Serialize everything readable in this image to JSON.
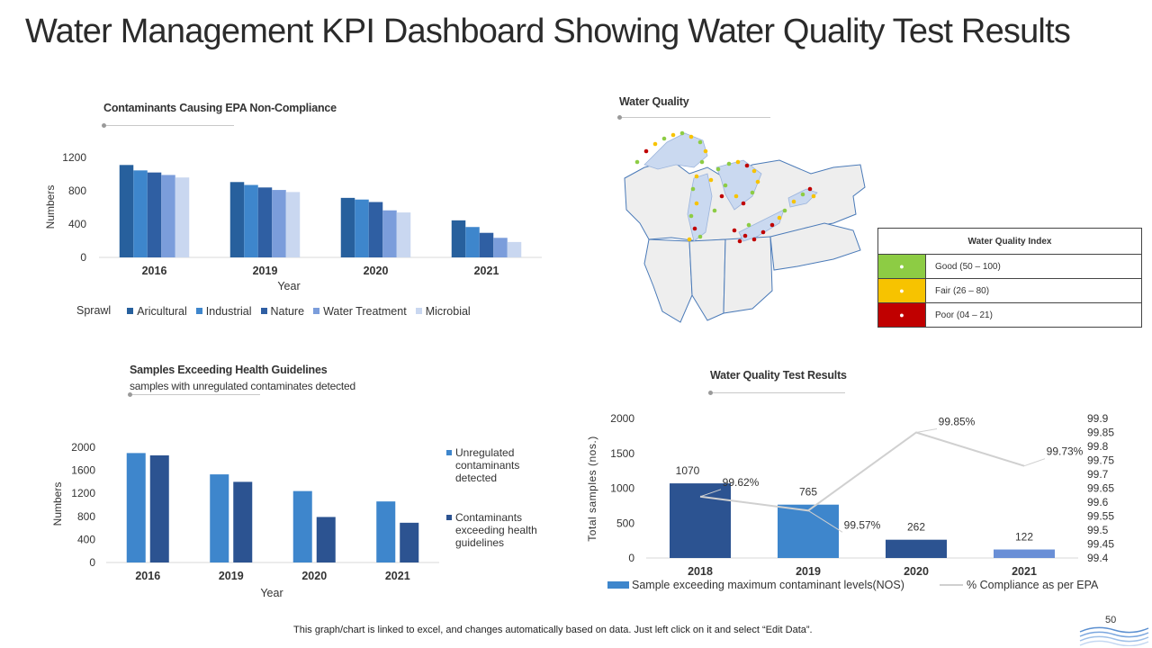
{
  "page": {
    "title": "Water Management KPI Dashboard Showing Water Quality Test Results",
    "footer_note": "This graph/chart is linked to excel,  and changes automatically based on data. Just left click on it and select “Edit Data”.",
    "page_number": "50"
  },
  "sections": {
    "contaminants": "Contaminants Causing EPA Non-Compliance",
    "water_quality": "Water Quality",
    "samples_title": "Samples Exceeding Health Guidelines",
    "samples_subtitle": "samples with unregulated contaminates detected",
    "test_results": "Water Quality Test Results"
  },
  "colors": {
    "navy": "#2c5391",
    "darkblue": "#27609d",
    "blue": "#3e86cc",
    "midblue": "#2f5fa3",
    "lightblue": "#7b9ddb",
    "paleblue": "#c9d7f0",
    "good": "#8dcc44",
    "fair": "#f7c300",
    "poor": "#c00000"
  },
  "legend_index": {
    "header": "Water Quality Index",
    "rows": [
      {
        "dot": "●",
        "label": "Good (50 – 100)",
        "color": "#8dcc44"
      },
      {
        "dot": "●",
        "label": "Fair (26 – 80)",
        "color": "#f7c300"
      },
      {
        "dot": "●",
        "label": "Poor (04 – 21)",
        "color": "#c00000"
      }
    ]
  },
  "chart_data": [
    {
      "type": "bar",
      "title": "Contaminants Causing EPA Non-Compliance",
      "categories": [
        "2016",
        "2019",
        "2020",
        "2021"
      ],
      "xlabel": "Year",
      "ylabel": "Numbers",
      "ylim": [
        0,
        1200
      ],
      "yticks": [
        0,
        400,
        800,
        1200
      ],
      "legend_lead": "Sprawl",
      "series": [
        {
          "name": "Aricultural",
          "color": "#27609d",
          "values": [
            1110,
            905,
            715,
            445
          ]
        },
        {
          "name": "Industrial",
          "color": "#3e86cc",
          "values": [
            1045,
            870,
            695,
            365
          ]
        },
        {
          "name": "Nature",
          "color": "#2f5fa3",
          "values": [
            1020,
            840,
            665,
            295
          ]
        },
        {
          "name": "Water Treatment",
          "color": "#7b9ddb",
          "values": [
            990,
            810,
            565,
            235
          ]
        },
        {
          "name": "Microbial",
          "color": "#c9d7f0",
          "values": [
            960,
            785,
            540,
            185
          ]
        }
      ]
    },
    {
      "type": "bar",
      "title": "Samples Exceeding Health Guidelines",
      "categories": [
        "2016",
        "2019",
        "2020",
        "2021"
      ],
      "xlabel": "Year",
      "ylabel": "Numbers",
      "ylim": [
        0,
        2000
      ],
      "yticks": [
        0,
        400,
        800,
        1200,
        1600,
        2000
      ],
      "series": [
        {
          "name": "Unregulated contaminants detected",
          "lines": [
            "Unregulated",
            "contaminants",
            "detected"
          ],
          "color": "#3e86cc",
          "values": [
            1900,
            1530,
            1240,
            1060
          ]
        },
        {
          "name": "Contaminants exceeding health guidelines",
          "lines": [
            "Contaminants",
            "exceeding health",
            "guidelines"
          ],
          "color": "#2c5391",
          "values": [
            1860,
            1400,
            790,
            690
          ]
        }
      ]
    },
    {
      "type": "bar",
      "title": "Water Quality Test Results",
      "categories": [
        "2018",
        "2019",
        "2020",
        "2021"
      ],
      "ylabel": "Total samples (nos.)",
      "ylim": [
        0,
        2000
      ],
      "yticks": [
        0,
        500,
        1000,
        1500,
        2000
      ],
      "y2lim": [
        99.4,
        99.9
      ],
      "y2ticks": [
        "99.4",
        "99.45",
        "99.5",
        "99.55",
        "99.6",
        "99.65",
        "99.7",
        "99.75",
        "99.8",
        "99.85",
        "99.9"
      ],
      "series": [
        {
          "name": "Sample exceeding maximum contaminant levels(NOS)",
          "type": "bar",
          "colors": [
            "#2c5391",
            "#3e86cc",
            "#2c5391",
            "#6a8fd6"
          ],
          "values": [
            1070,
            765,
            262,
            122
          ],
          "labels": [
            "1070",
            "765",
            "262",
            "122"
          ]
        },
        {
          "name": "% Compliance as per EPA",
          "type": "line",
          "axis": "y2",
          "color": "#d0d0d0",
          "values": [
            99.62,
            99.57,
            99.85,
            99.73
          ],
          "labels": [
            "99.62%",
            "99.57%",
            "99.85%",
            "99.73%"
          ]
        }
      ]
    }
  ]
}
